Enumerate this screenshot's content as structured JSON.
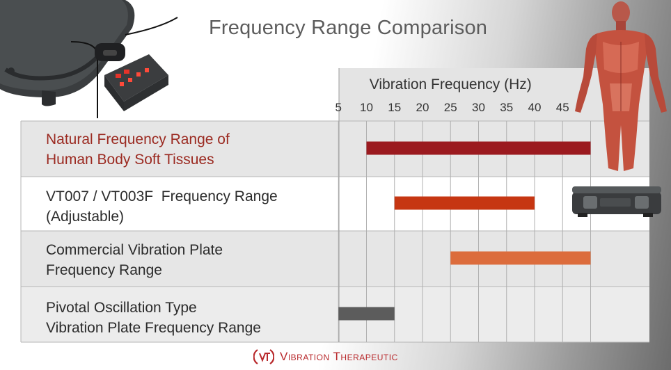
{
  "title": "Frequency Range Comparison",
  "brand": "Vibration Therapeutic",
  "colors": {
    "natural": "#9b1a1f",
    "vt007": "#c63612",
    "commercial": "#dc6c3c",
    "pivotal": "#5c5c5c",
    "title": "#5c5c5c",
    "accent_label": "#9b2a21",
    "brand": "#b8282b"
  },
  "chart_data": {
    "type": "bar",
    "orientation": "horizontal-range",
    "title": "Frequency Range Comparison",
    "xlabel": "Vibration Frequency (Hz)",
    "x_ticks": [
      5,
      10,
      15,
      20,
      25,
      30,
      35,
      40,
      45
    ],
    "xlim": [
      0,
      50
    ],
    "grid": true,
    "categories": [
      [
        "Natural Frequency Range of",
        "Human Body Soft Tissues"
      ],
      [
        "VT007 / VT003F  Frequency Range",
        "(Adjustable)"
      ],
      [
        "Commercial Vibration Plate",
        "Frequency Range"
      ],
      [
        "Pivotal Oscillation Type",
        "Vibration Plate Frequency Range"
      ]
    ],
    "ranges": [
      [
        10,
        50
      ],
      [
        15,
        40
      ],
      [
        25,
        50
      ],
      [
        5,
        15
      ]
    ]
  },
  "icons": {
    "device": "vibration-plate-device-image",
    "plate": "vibration-plate-image",
    "body": "human-muscle-anatomy-image",
    "logo": "vt-logo-icon"
  }
}
